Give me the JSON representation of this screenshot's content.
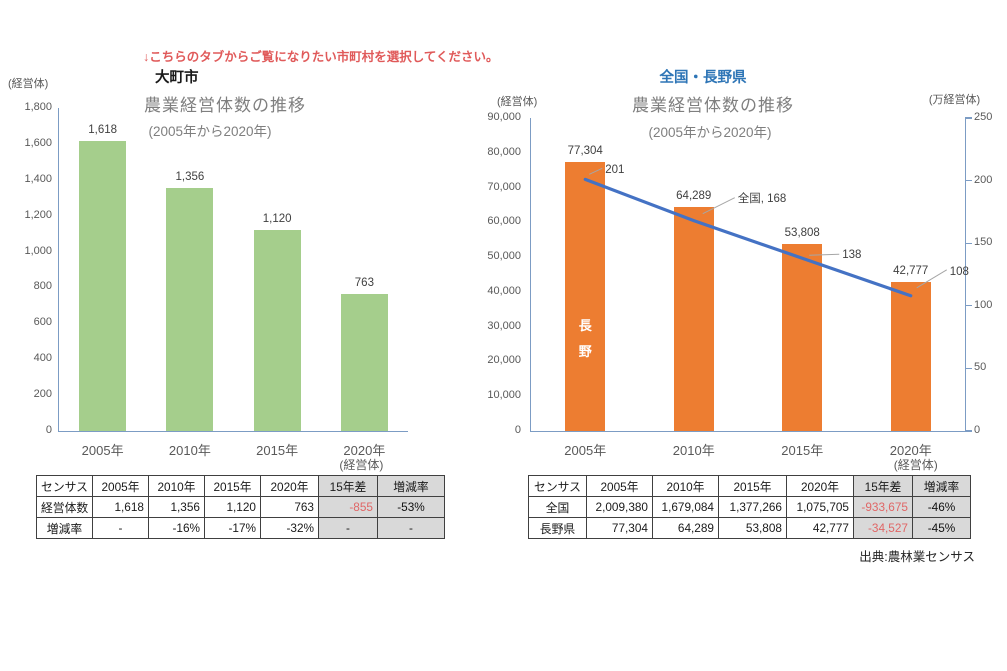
{
  "instruction": "↓こちらのタブからご覧になりたい市町村を選択してください。",
  "source_note": "出典:農林業センサス",
  "colors": {
    "bar_green": "#A5CE8C",
    "bar_orange": "#ED7D31",
    "line_blue": "#4472C4",
    "axis_blue": "#7C9CC4",
    "leader_gray": "#A6A6A6",
    "title_gray": "#7F7F7F",
    "region_blue": "#2E75B6",
    "instruction_red": "#E05A5A",
    "table_negative_red": "#E06666",
    "table_header_gray": "#D9D9D9"
  },
  "chart_data": [
    {
      "type": "bar",
      "region_label": "大町市",
      "title": "農業経営体数の推移",
      "subtitle": "(2005年から2020年)",
      "axis_unit_left": "(経営体)",
      "x_axis_unit": "(経営体)",
      "categories": [
        "2005年",
        "2010年",
        "2015年",
        "2020年"
      ],
      "values": [
        1618,
        1356,
        1120,
        763
      ],
      "value_labels": [
        "1,618",
        "1,356",
        "1,120",
        "763"
      ],
      "ylim": [
        0,
        1800
      ],
      "ytick_labels": [
        "0",
        "200",
        "400",
        "600",
        "800",
        "1,000",
        "1,200",
        "1,400",
        "1,600",
        "1,800"
      ],
      "grid": false,
      "legend": "none",
      "bar_color": "#A5CE8C"
    },
    {
      "type": "bar+line",
      "region_label": "全国・長野県",
      "title": "農業経営体数の推移",
      "subtitle": "(2005年から2020年)",
      "axis_unit_left": "(経営体)",
      "axis_unit_right": "(万経営体)",
      "x_axis_unit": "(経営体)",
      "categories": [
        "2005年",
        "2010年",
        "2015年",
        "2020年"
      ],
      "series": [
        {
          "name": "長野",
          "type": "bar",
          "axis": "left",
          "values": [
            77304,
            64289,
            53808,
            42777
          ],
          "value_labels": [
            "77,304",
            "64,289",
            "53,808",
            "42,777"
          ],
          "bar_inner_label": "長野",
          "color": "#ED7D31"
        },
        {
          "name": "全国",
          "type": "line",
          "axis": "right",
          "values": [
            201,
            168,
            138,
            108
          ],
          "value_labels": [
            "201",
            "全国, 168",
            "138",
            "108"
          ],
          "color": "#4472C4"
        }
      ],
      "left_ylim": [
        0,
        90000
      ],
      "left_ytick_labels": [
        "0",
        "10,000",
        "20,000",
        "30,000",
        "40,000",
        "50,000",
        "60,000",
        "70,000",
        "80,000",
        "90,000"
      ],
      "right_ylim": [
        0,
        250
      ],
      "right_ytick_labels": [
        "0",
        "50",
        "100",
        "150",
        "200",
        "250"
      ],
      "grid": false,
      "legend": "none"
    }
  ],
  "tables": [
    {
      "headers": [
        "センサス",
        "2005年",
        "2010年",
        "2015年",
        "2020年",
        "15年差",
        "増減率"
      ],
      "rows": [
        [
          "経営体数",
          "1,618",
          "1,356",
          "1,120",
          "763",
          "-855",
          "-53%"
        ],
        [
          "増減率",
          "-",
          "-16%",
          "-17%",
          "-32%",
          "-",
          "-"
        ]
      ]
    },
    {
      "headers": [
        "センサス",
        "2005年",
        "2010年",
        "2015年",
        "2020年",
        "15年差",
        "増減率"
      ],
      "rows": [
        [
          "全国",
          "2,009,380",
          "1,679,084",
          "1,377,266",
          "1,075,705",
          "-933,675",
          "-46%"
        ],
        [
          "長野県",
          "77,304",
          "64,289",
          "53,808",
          "42,777",
          "-34,527",
          "-45%"
        ]
      ]
    }
  ]
}
